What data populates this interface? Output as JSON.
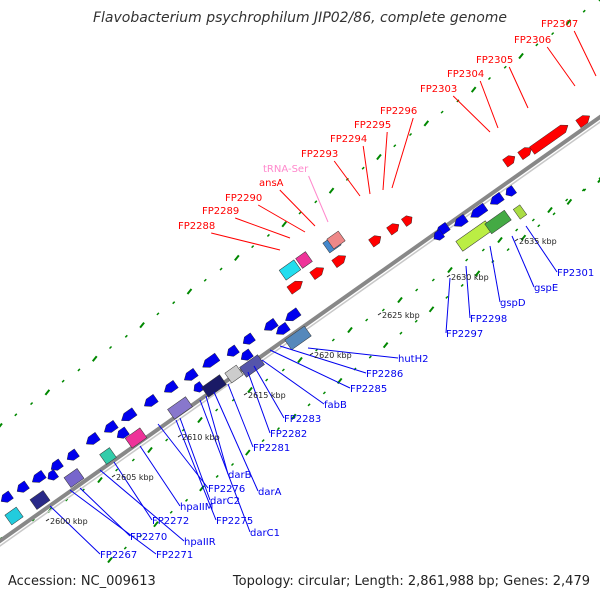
{
  "title": "Flavobacterium psychrophilum JIP02/86, complete genome",
  "footer": {
    "accession": "Accession: NC_009613",
    "summary": "Topology: circular; Length: 2,861,988 bp; Genes: 2,479"
  },
  "colors": {
    "backbone": "#888888",
    "forward_gene": "#ff0000",
    "reverse_gene": "#0000ee",
    "trna_label": "#ff88cc",
    "tick": "#008800"
  },
  "ticks": [
    "2600 kbp",
    "2605 kbp",
    "2610 kbp",
    "2615 kbp",
    "2620 kbp",
    "2625 kbp",
    "2630 kbp",
    "2635 kbp"
  ],
  "forward_labels": [
    "FP2288",
    "FP2289",
    "FP2290",
    "ansA",
    "tRNA-Ser",
    "FP2293",
    "FP2294",
    "FP2295",
    "FP2296",
    "FP2303",
    "FP2304",
    "FP2305",
    "FP2306",
    "FP2307"
  ],
  "reverse_labels": [
    "FP2267",
    "FP2271",
    "FP2270",
    "hpaIIR",
    "FP2272",
    "hpaIIM",
    "FP2275",
    "darC1",
    "darC2",
    "FP2276",
    "darB",
    "darA",
    "FP2281",
    "FP2282",
    "FP2283",
    "fabB",
    "FP2285",
    "FP2286",
    "hutH2",
    "FP2297",
    "FP2298",
    "gspD",
    "gspE",
    "FP2301"
  ]
}
